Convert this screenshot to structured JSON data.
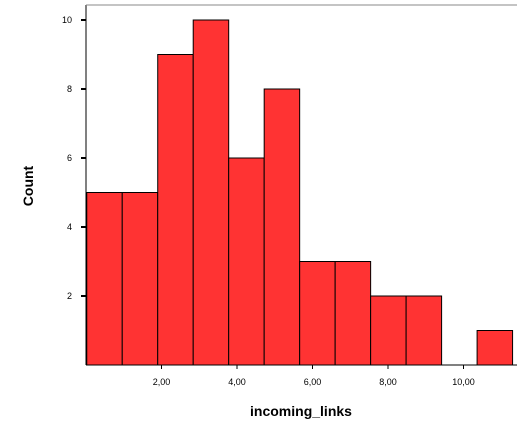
{
  "chart_data": {
    "type": "bar",
    "xlabel": "incoming_links",
    "ylabel": "Count",
    "xlim": [
      0,
      11.3
    ],
    "ylim": [
      0,
      10
    ],
    "bin_width": 0.94,
    "bins": [
      {
        "x0": 0.02,
        "count": 5
      },
      {
        "x0": 0.96,
        "count": 5
      },
      {
        "x0": 1.9,
        "count": 9
      },
      {
        "x0": 2.84,
        "count": 10
      },
      {
        "x0": 3.78,
        "count": 6
      },
      {
        "x0": 4.72,
        "count": 8
      },
      {
        "x0": 5.66,
        "count": 3
      },
      {
        "x0": 6.6,
        "count": 3
      },
      {
        "x0": 7.54,
        "count": 2
      },
      {
        "x0": 8.48,
        "count": 2
      },
      {
        "x0": 9.42,
        "count": 0
      },
      {
        "x0": 10.36,
        "count": 1
      }
    ],
    "x_ticks": [
      {
        "value": 2,
        "label": "2,00"
      },
      {
        "value": 4,
        "label": "4,00"
      },
      {
        "value": 6,
        "label": "6,00"
      },
      {
        "value": 8,
        "label": "8,00"
      },
      {
        "value": 10,
        "label": "10,00"
      }
    ],
    "y_ticks": [
      {
        "value": 2,
        "label": "2"
      },
      {
        "value": 4,
        "label": "4"
      },
      {
        "value": 6,
        "label": "6"
      },
      {
        "value": 8,
        "label": "8"
      },
      {
        "value": 10,
        "label": "10"
      }
    ],
    "grid": false,
    "bar_color": "#ff3333",
    "bar_edge_color": "#000000"
  }
}
